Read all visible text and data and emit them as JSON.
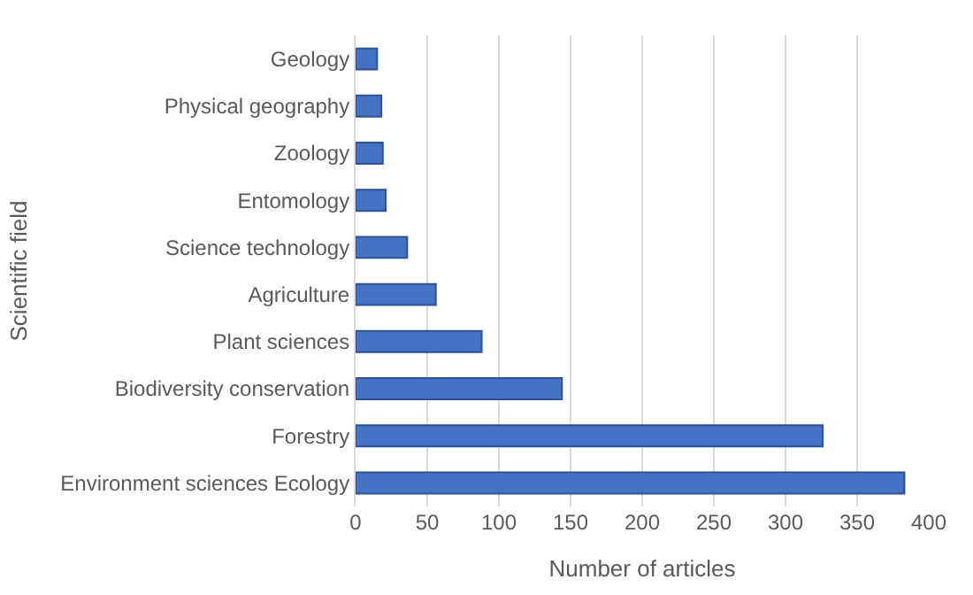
{
  "chart_data": {
    "type": "bar",
    "orientation": "horizontal",
    "xlabel": "Number of articles",
    "ylabel": "Scientific field",
    "categories": [
      "Geology",
      "Physical geography",
      "Zoology",
      "Entomology",
      "Science technology",
      "Agriculture",
      "Plant sciences",
      "Biodiversity conservation",
      "Forestry",
      "Environment sciences Ecology"
    ],
    "values": [
      15,
      18,
      19,
      21,
      36,
      56,
      88,
      144,
      326,
      383
    ],
    "color": "#4472c4",
    "xlim": [
      0,
      400
    ],
    "xticks": [
      0,
      50,
      100,
      150,
      200,
      250,
      300,
      350,
      400
    ],
    "grid": "x"
  }
}
